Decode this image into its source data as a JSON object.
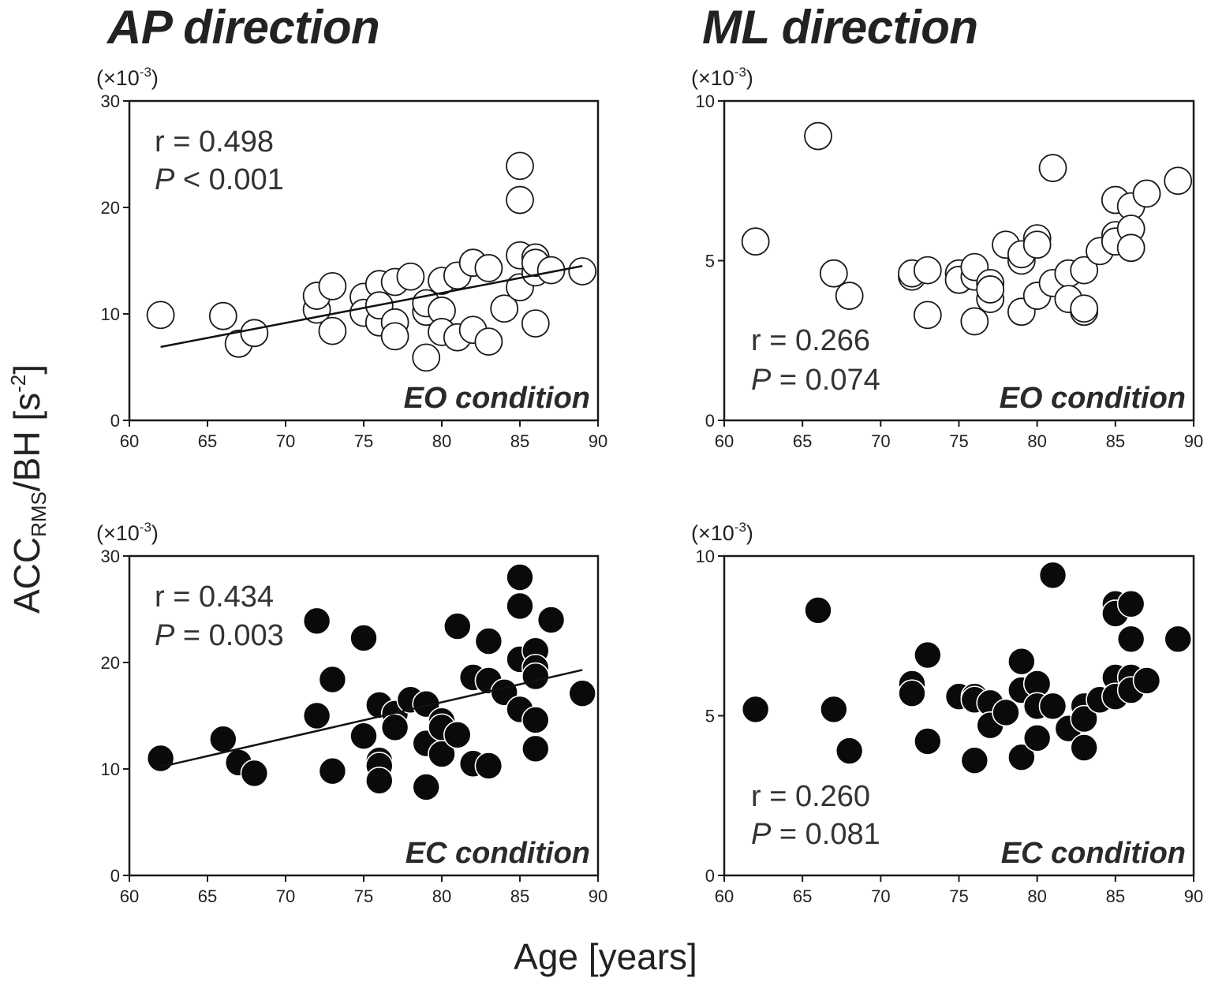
{
  "page": {
    "ylabel_main": "ACC",
    "ylabel_sub": "RMS",
    "ylabel_mid": "/BH [s",
    "ylabel_sup": "-2",
    "ylabel_end": "]",
    "xlabel": "Age [years]",
    "col_titles": [
      "AP direction",
      "ML direction"
    ]
  },
  "chart_data": [
    {
      "type": "scatter",
      "id": "ap-eo",
      "title": "AP direction",
      "condition": "EO condition",
      "multiplier_label": "(×10",
      "multiplier_exp": "-3",
      "r_text": "r = 0.498",
      "p_italic": "P",
      "p_text": "< 0.001",
      "xlim": [
        60,
        90
      ],
      "ylim": [
        0,
        30
      ],
      "xticks": [
        60,
        65,
        70,
        75,
        80,
        85,
        90
      ],
      "yticks": [
        0,
        10,
        20,
        30
      ],
      "marker": "open",
      "regression": {
        "x": [
          62,
          89
        ],
        "y": [
          6.9,
          14.5
        ]
      },
      "points": [
        [
          62,
          9.9
        ],
        [
          66,
          9.8
        ],
        [
          67,
          7.2
        ],
        [
          68,
          8.2
        ],
        [
          72,
          10.4
        ],
        [
          72,
          11.7
        ],
        [
          73,
          12.6
        ],
        [
          73,
          8.4
        ],
        [
          75,
          11.6
        ],
        [
          75,
          10.1
        ],
        [
          76,
          9.2
        ],
        [
          76,
          12.8
        ],
        [
          76,
          10.8
        ],
        [
          77,
          13.0
        ],
        [
          77,
          9.2
        ],
        [
          77,
          7.9
        ],
        [
          78,
          13.5
        ],
        [
          79,
          10.2
        ],
        [
          79,
          11.0
        ],
        [
          79,
          5.9
        ],
        [
          80,
          13.1
        ],
        [
          80,
          10.3
        ],
        [
          80,
          8.3
        ],
        [
          81,
          13.6
        ],
        [
          81,
          7.8
        ],
        [
          82,
          14.8
        ],
        [
          82,
          8.5
        ],
        [
          83,
          14.3
        ],
        [
          83,
          7.4
        ],
        [
          84,
          10.5
        ],
        [
          85,
          23.9
        ],
        [
          85,
          20.7
        ],
        [
          85,
          15.5
        ],
        [
          85,
          12.5
        ],
        [
          86,
          15.3
        ],
        [
          86,
          13.9
        ],
        [
          86,
          14.8
        ],
        [
          86,
          9.1
        ],
        [
          87,
          14.1
        ],
        [
          89,
          14.0
        ]
      ]
    },
    {
      "type": "scatter",
      "id": "ml-eo",
      "title": "ML direction",
      "condition": "EO condition",
      "multiplier_label": "(×10",
      "multiplier_exp": "-3",
      "r_text": "r = 0.266",
      "p_italic": "P",
      "p_text": "= 0.074",
      "xlim": [
        60,
        90
      ],
      "ylim": [
        0,
        10
      ],
      "xticks": [
        60,
        65,
        70,
        75,
        80,
        85,
        90
      ],
      "yticks": [
        0,
        5,
        10
      ],
      "marker": "open",
      "regression": null,
      "points": [
        [
          62,
          5.6
        ],
        [
          66,
          8.9
        ],
        [
          67,
          4.6
        ],
        [
          68,
          3.9
        ],
        [
          72,
          4.5
        ],
        [
          72,
          4.6
        ],
        [
          73,
          4.7
        ],
        [
          73,
          3.3
        ],
        [
          75,
          4.6
        ],
        [
          75,
          4.4
        ],
        [
          76,
          4.5
        ],
        [
          76,
          4.8
        ],
        [
          76,
          3.1
        ],
        [
          77,
          4.3
        ],
        [
          77,
          3.8
        ],
        [
          77,
          4.1
        ],
        [
          78,
          5.5
        ],
        [
          79,
          5.0
        ],
        [
          79,
          5.2
        ],
        [
          79,
          3.4
        ],
        [
          80,
          5.7
        ],
        [
          80,
          5.5
        ],
        [
          80,
          3.9
        ],
        [
          81,
          7.9
        ],
        [
          81,
          4.3
        ],
        [
          82,
          4.6
        ],
        [
          82,
          3.8
        ],
        [
          83,
          4.7
        ],
        [
          83,
          3.4
        ],
        [
          83,
          3.5
        ],
        [
          84,
          5.3
        ],
        [
          85,
          6.9
        ],
        [
          85,
          5.8
        ],
        [
          85,
          5.6
        ],
        [
          86,
          6.7
        ],
        [
          86,
          6.0
        ],
        [
          86,
          5.4
        ],
        [
          87,
          7.1
        ],
        [
          89,
          7.5
        ]
      ]
    },
    {
      "type": "scatter",
      "id": "ap-ec",
      "title": "AP direction",
      "condition": "EC condition",
      "multiplier_label": "(×10",
      "multiplier_exp": "-3",
      "r_text": "r = 0.434",
      "p_italic": "P",
      "p_text": "= 0.003",
      "xlim": [
        60,
        90
      ],
      "ylim": [
        0,
        30
      ],
      "xticks": [
        60,
        65,
        70,
        75,
        80,
        85,
        90
      ],
      "yticks": [
        0,
        10,
        20,
        30
      ],
      "marker": "filled",
      "regression": {
        "x": [
          62,
          89
        ],
        "y": [
          10.2,
          19.3
        ]
      },
      "points": [
        [
          62,
          11.0
        ],
        [
          66,
          12.8
        ],
        [
          67,
          10.6
        ],
        [
          68,
          9.6
        ],
        [
          72,
          23.9
        ],
        [
          72,
          15.0
        ],
        [
          73,
          18.4
        ],
        [
          73,
          9.8
        ],
        [
          75,
          22.3
        ],
        [
          75,
          13.1
        ],
        [
          76,
          16.0
        ],
        [
          76,
          10.8
        ],
        [
          76,
          10.3
        ],
        [
          76,
          8.9
        ],
        [
          77,
          15.2
        ],
        [
          77,
          13.9
        ],
        [
          78,
          16.5
        ],
        [
          79,
          16.1
        ],
        [
          79,
          12.4
        ],
        [
          79,
          8.3
        ],
        [
          80,
          14.5
        ],
        [
          80,
          13.9
        ],
        [
          80,
          11.4
        ],
        [
          81,
          23.4
        ],
        [
          81,
          13.2
        ],
        [
          82,
          18.6
        ],
        [
          82,
          10.5
        ],
        [
          83,
          22.0
        ],
        [
          83,
          18.3
        ],
        [
          83,
          10.3
        ],
        [
          84,
          17.2
        ],
        [
          85,
          28.0
        ],
        [
          85,
          25.3
        ],
        [
          85,
          20.3
        ],
        [
          85,
          15.6
        ],
        [
          86,
          21.1
        ],
        [
          86,
          19.5
        ],
        [
          86,
          18.7
        ],
        [
          86,
          14.6
        ],
        [
          86,
          11.9
        ],
        [
          87,
          24.0
        ],
        [
          89,
          17.1
        ]
      ]
    },
    {
      "type": "scatter",
      "id": "ml-ec",
      "title": "ML direction",
      "condition": "EC condition",
      "multiplier_label": "(×10",
      "multiplier_exp": "-3",
      "r_text": "r = 0.260",
      "p_italic": "P",
      "p_text": "= 0.081",
      "xlim": [
        60,
        90
      ],
      "ylim": [
        0,
        10
      ],
      "xticks": [
        60,
        65,
        70,
        75,
        80,
        85,
        90
      ],
      "yticks": [
        0,
        5,
        10
      ],
      "marker": "filled",
      "regression": null,
      "points": [
        [
          62,
          5.2
        ],
        [
          66,
          8.3
        ],
        [
          67,
          5.2
        ],
        [
          68,
          3.9
        ],
        [
          72,
          6.0
        ],
        [
          72,
          5.7
        ],
        [
          73,
          6.9
        ],
        [
          73,
          4.2
        ],
        [
          75,
          5.6
        ],
        [
          76,
          5.6
        ],
        [
          76,
          5.5
        ],
        [
          76,
          3.6
        ],
        [
          77,
          5.4
        ],
        [
          77,
          4.7
        ],
        [
          78,
          5.1
        ],
        [
          79,
          6.7
        ],
        [
          79,
          5.8
        ],
        [
          79,
          3.7
        ],
        [
          80,
          6.0
        ],
        [
          80,
          5.3
        ],
        [
          80,
          4.3
        ],
        [
          81,
          9.4
        ],
        [
          81,
          5.3
        ],
        [
          82,
          4.6
        ],
        [
          83,
          5.3
        ],
        [
          83,
          4.9
        ],
        [
          83,
          4.0
        ],
        [
          84,
          5.5
        ],
        [
          85,
          8.5
        ],
        [
          85,
          8.2
        ],
        [
          85,
          6.2
        ],
        [
          85,
          5.6
        ],
        [
          86,
          8.5
        ],
        [
          86,
          7.4
        ],
        [
          86,
          6.2
        ],
        [
          86,
          5.8
        ],
        [
          87,
          6.1
        ],
        [
          89,
          7.4
        ]
      ]
    }
  ]
}
